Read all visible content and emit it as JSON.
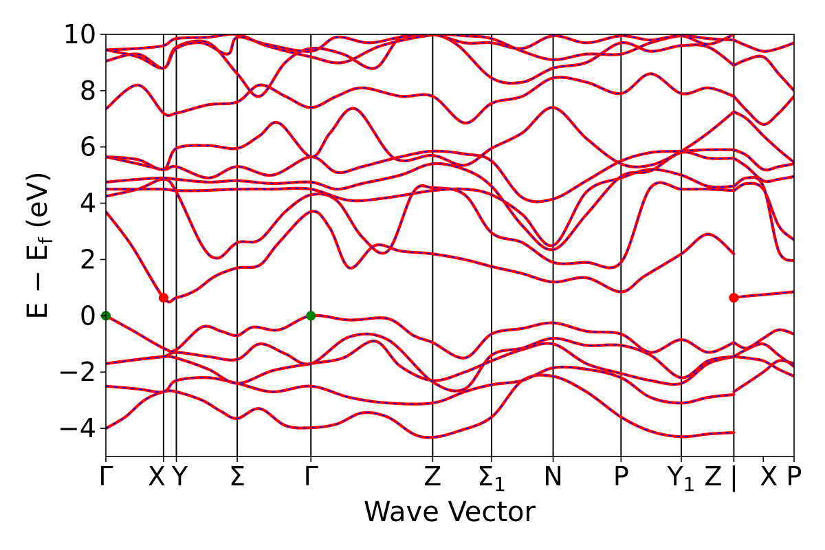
{
  "chart_data": {
    "type": "line",
    "title": "",
    "xlabel": "Wave Vector",
    "ylabel": "E − E_f (eV)",
    "ylabel_parts": {
      "main": "E − E",
      "sub": "f",
      "unit": " (eV)"
    },
    "ylim": [
      -5,
      10
    ],
    "yticks": [
      -4,
      -2,
      0,
      2,
      4,
      6,
      8,
      10
    ],
    "ytick_labels": [
      "−4",
      "−2",
      "0",
      "2",
      "4",
      "6",
      "8",
      "10"
    ],
    "xlim": [
      0,
      10.74
    ],
    "kpoints": [
      {
        "pos": 0.0,
        "label": "Γ"
      },
      {
        "pos": 0.9,
        "label": "X"
      },
      {
        "pos": 1.1,
        "label": "Y"
      },
      {
        "pos": 2.05,
        "label": "Σ"
      },
      {
        "pos": 3.2,
        "label": "Γ"
      },
      {
        "pos": 5.1,
        "label": "Z"
      },
      {
        "pos": 6.02,
        "label": "Σ",
        "sub": "1"
      },
      {
        "pos": 6.98,
        "label": "N"
      },
      {
        "pos": 8.04,
        "label": "P"
      },
      {
        "pos": 8.98,
        "label": "Y",
        "sub": "1"
      },
      {
        "pos": 9.8,
        "label": "Z"
      },
      {
        "pos": 9.8,
        "label": "|"
      },
      {
        "pos": 10.26,
        "label": "X"
      },
      {
        "pos": 10.74,
        "label": "P"
      }
    ],
    "vlines": [
      0.9,
      1.1,
      2.05,
      3.2,
      5.1,
      6.02,
      6.98,
      8.04,
      8.98,
      9.8
    ],
    "colors": {
      "band_main": "#ff0000",
      "band_overlay": "#0000ff",
      "cbm": "#ff0000",
      "vbm": "#008000"
    },
    "markers": [
      {
        "name": "CBM",
        "x": 0.9,
        "y": 0.64,
        "color": "#ff0000"
      },
      {
        "name": "CBM",
        "x": 9.8,
        "y": 0.64,
        "color": "#ff0000"
      },
      {
        "name": "VBM",
        "x": 0.0,
        "y": 0.0,
        "color": "#008000"
      },
      {
        "name": "VBM",
        "x": 3.2,
        "y": 0.0,
        "color": "#008000"
      }
    ],
    "series": [
      {
        "x": [
          0,
          0.3,
          0.6,
          0.9,
          1.1,
          1.5,
          1.8,
          2.05,
          2.4,
          2.8,
          3.2,
          3.6,
          4.0,
          4.4,
          4.8,
          5.1,
          5.5,
          6.02,
          6.5,
          6.98,
          7.5,
          8.04,
          8.5,
          8.98,
          9.4,
          9.8
        ],
        "y": [
          -4.0,
          -3.6,
          -3.0,
          -2.7,
          -2.7,
          -3.0,
          -3.4,
          -3.65,
          -3.3,
          -3.9,
          -3.98,
          -3.85,
          -3.45,
          -3.6,
          -4.2,
          -4.32,
          -4.1,
          -3.6,
          -2.3,
          -2.15,
          -2.7,
          -3.6,
          -4.1,
          -4.3,
          -4.2,
          -4.15
        ]
      },
      {
        "x": [
          0,
          0.5,
          0.9,
          1.1,
          1.6,
          2.05,
          2.6,
          3.2,
          3.8,
          4.4,
          5.1,
          5.6,
          6.02,
          6.5,
          6.98,
          7.5,
          8.04,
          8.5,
          8.98,
          9.4,
          9.8
        ],
        "y": [
          -2.5,
          -2.6,
          -2.7,
          -2.3,
          -2.2,
          -2.4,
          -2.7,
          -2.5,
          -2.9,
          -3.1,
          -3.1,
          -2.7,
          -2.45,
          -2.3,
          -1.85,
          -1.9,
          -2.2,
          -2.9,
          -3.1,
          -2.9,
          -2.8
        ]
      },
      {
        "x": [
          0,
          0.5,
          0.9,
          1.1,
          1.6,
          2.05,
          2.6,
          3.2,
          3.7,
          4.2,
          4.6,
          5.1,
          5.6,
          6.02,
          6.5,
          6.98,
          7.5,
          8.04,
          8.5,
          8.98,
          9.4,
          9.8
        ],
        "y": [
          -1.7,
          -1.55,
          -1.45,
          -1.5,
          -1.9,
          -2.4,
          -1.95,
          -1.7,
          -1.5,
          -0.9,
          -1.8,
          -2.3,
          -2.0,
          -1.6,
          -1.2,
          -1.0,
          -1.7,
          -2.05,
          -2.3,
          -2.4,
          -1.7,
          -1.45
        ]
      },
      {
        "x": [
          0,
          0.5,
          0.9,
          1.1,
          1.6,
          2.05,
          2.4,
          2.8,
          3.2,
          3.8,
          4.4,
          5.1,
          5.6,
          6.02,
          6.5,
          6.98,
          7.5,
          8.04,
          8.5,
          8.98,
          9.4,
          9.8
        ],
        "y": [
          -1.7,
          -1.55,
          -1.45,
          -1.3,
          -1.45,
          -1.55,
          -1.0,
          -1.35,
          -1.7,
          -0.75,
          -0.85,
          -2.35,
          -2.6,
          -1.4,
          -1.15,
          -0.8,
          -1.05,
          -1.05,
          -1.4,
          -2.2,
          -1.6,
          -1.45
        ]
      },
      {
        "x": [
          0,
          0.4,
          0.9,
          1.1,
          1.5,
          1.8,
          2.05,
          2.3,
          2.7,
          3.2,
          3.8,
          4.4,
          4.8,
          5.1,
          5.6,
          6.02,
          6.5,
          6.98,
          7.5,
          8.04,
          8.5,
          8.98,
          9.4,
          9.8
        ],
        "y": [
          0.0,
          -0.5,
          -1.15,
          -1.2,
          -0.4,
          -0.55,
          -0.7,
          -0.4,
          -0.5,
          0.0,
          -0.15,
          -0.1,
          -0.7,
          -0.95,
          -1.5,
          -0.65,
          -0.45,
          -0.25,
          -0.55,
          -0.65,
          -1.3,
          -0.85,
          -1.3,
          -0.95
        ]
      },
      {
        "x": [
          0,
          0.4,
          0.9,
          1.1,
          1.4,
          1.7,
          2.05,
          2.4,
          2.7,
          3.2,
          3.5,
          3.8,
          4.2,
          4.6,
          5.1,
          5.6,
          6.02,
          6.5,
          6.98,
          7.5,
          8.04,
          8.4,
          8.98,
          9.4,
          9.8
        ],
        "y": [
          3.7,
          2.5,
          0.64,
          0.64,
          0.9,
          1.4,
          1.7,
          1.8,
          2.6,
          3.7,
          3.1,
          1.7,
          2.5,
          2.3,
          2.2,
          2.0,
          1.75,
          1.5,
          1.2,
          1.35,
          0.85,
          1.4,
          2.2,
          2.9,
          2.2
        ]
      },
      {
        "x": [
          0,
          0.5,
          0.9,
          1.1,
          1.5,
          1.75,
          2.05,
          2.4,
          2.8,
          3.2,
          3.6,
          4.0,
          4.4,
          4.8,
          5.1,
          5.6,
          6.02,
          6.5,
          6.98,
          7.5,
          8.04,
          8.5,
          8.98,
          9.4,
          9.8
        ],
        "y": [
          4.25,
          4.5,
          4.85,
          4.4,
          2.5,
          2.05,
          2.6,
          2.7,
          3.7,
          4.3,
          4.1,
          2.8,
          2.3,
          4.4,
          4.55,
          4.3,
          2.95,
          2.6,
          1.9,
          1.9,
          1.9,
          4.55,
          4.5,
          4.5,
          4.45
        ]
      },
      {
        "x": [
          0,
          0.5,
          0.9,
          1.1,
          1.5,
          2.05,
          2.6,
          3.2,
          3.8,
          4.4,
          5.1,
          5.6,
          6.02,
          6.5,
          6.98,
          7.5,
          8.04,
          8.5,
          8.98,
          9.4,
          9.8
        ],
        "y": [
          4.5,
          4.5,
          4.5,
          4.45,
          4.45,
          4.5,
          4.5,
          4.5,
          4.1,
          4.2,
          4.45,
          4.5,
          4.3,
          3.6,
          2.5,
          4.4,
          4.9,
          5.2,
          5.0,
          4.6,
          4.6
        ]
      },
      {
        "x": [
          0,
          0.5,
          0.9,
          1.1,
          1.6,
          2.05,
          2.6,
          3.2,
          3.6,
          4.0,
          4.6,
          5.1,
          5.6,
          6.02,
          6.5,
          6.98,
          7.5,
          8.04,
          8.5,
          8.98,
          9.4,
          9.8
        ],
        "y": [
          4.75,
          4.85,
          4.9,
          4.85,
          4.75,
          4.8,
          4.7,
          4.75,
          4.5,
          4.7,
          5.0,
          5.4,
          5.2,
          4.6,
          3.2,
          2.35,
          3.6,
          4.95,
          5.15,
          5.8,
          5.6,
          5.6
        ]
      },
      {
        "x": [
          0,
          0.5,
          0.9,
          1.1,
          1.6,
          2.05,
          2.6,
          3.2,
          3.6,
          4.0,
          4.6,
          5.1,
          5.6,
          6.02,
          6.5,
          6.98,
          7.5,
          8.04,
          8.5,
          8.98,
          9.4,
          9.8
        ],
        "y": [
          5.65,
          5.4,
          5.2,
          5.3,
          4.9,
          5.3,
          5.0,
          5.65,
          5.1,
          5.3,
          5.65,
          5.85,
          5.75,
          5.5,
          4.2,
          4.15,
          4.8,
          5.5,
          5.8,
          5.85,
          5.9,
          5.9
        ]
      },
      {
        "x": [
          0,
          0.5,
          0.9,
          1.1,
          1.6,
          2.05,
          2.4,
          2.7,
          3.2,
          3.5,
          3.9,
          4.5,
          5.1,
          5.6,
          6.02,
          6.5,
          6.98,
          7.5,
          8.04,
          8.5,
          8.98,
          9.4,
          9.8
        ],
        "y": [
          5.65,
          5.55,
          5.2,
          5.95,
          6.05,
          5.95,
          6.4,
          6.85,
          5.65,
          6.5,
          7.35,
          5.6,
          5.7,
          5.35,
          5.95,
          6.5,
          7.4,
          6.3,
          5.4,
          5.35,
          5.85,
          6.5,
          7.25
        ]
      },
      {
        "x": [
          0,
          0.5,
          0.9,
          1.1,
          1.6,
          2.05,
          2.4,
          2.8,
          3.2,
          3.6,
          4.0,
          4.6,
          5.1,
          5.6,
          6.02,
          6.5,
          6.98,
          7.5,
          8.04,
          8.5,
          8.98,
          9.4,
          9.8
        ],
        "y": [
          7.35,
          8.2,
          7.2,
          7.2,
          7.5,
          7.6,
          8.2,
          7.8,
          7.4,
          7.8,
          8.1,
          7.8,
          7.8,
          6.85,
          7.55,
          7.8,
          8.45,
          8.3,
          7.9,
          8.6,
          7.9,
          8.1,
          7.8
        ]
      },
      {
        "x": [
          0,
          0.5,
          0.9,
          1.1,
          1.6,
          2.05,
          2.4,
          2.8,
          3.2,
          3.7,
          4.2,
          4.6,
          5.1,
          5.5,
          6.02,
          6.5,
          6.98,
          7.5,
          8.04,
          8.5,
          8.98,
          9.4,
          9.8
        ],
        "y": [
          9.05,
          9.3,
          8.8,
          9.55,
          9.7,
          8.6,
          7.8,
          9.0,
          9.5,
          9.3,
          8.8,
          9.9,
          10.0,
          9.6,
          8.45,
          8.3,
          8.8,
          9.0,
          9.7,
          9.4,
          9.6,
          9.55,
          8.9
        ]
      },
      {
        "x": [
          0,
          0.5,
          0.9,
          1.1,
          1.6,
          2.05,
          2.5,
          3.2,
          3.7,
          4.3,
          5.1,
          5.6,
          6.02,
          6.5,
          6.98,
          7.5,
          8.04,
          8.5,
          8.98,
          9.4,
          9.8
        ],
        "y": [
          9.45,
          9.5,
          9.6,
          9.85,
          9.9,
          10.0,
          9.6,
          9.2,
          9.0,
          9.6,
          9.98,
          9.95,
          9.85,
          9.4,
          9.1,
          9.3,
          9.3,
          9.7,
          9.95,
          9.85,
          9.8
        ]
      },
      {
        "x": [
          0,
          0.5,
          0.9,
          1.1,
          1.5,
          1.9,
          2.05,
          2.5,
          3.2,
          3.6,
          4.1,
          4.6,
          5.1,
          5.6,
          6.02,
          6.5,
          6.98,
          7.5,
          8.04,
          8.5,
          8.98,
          9.4,
          9.8
        ],
        "y": [
          9.45,
          9.2,
          8.8,
          9.5,
          9.7,
          9.3,
          9.9,
          9.65,
          9.4,
          9.9,
          9.7,
          9.9,
          10.0,
          9.7,
          9.7,
          9.5,
          9.95,
          9.7,
          9.95,
          9.8,
          9.95,
          9.65,
          10.0
        ]
      },
      {
        "x": [
          9.8,
          10.0,
          10.26,
          10.5,
          10.74
        ],
        "y": [
          0.64,
          0.7,
          0.75,
          0.8,
          0.85
        ]
      },
      {
        "x": [
          9.8,
          10.0,
          10.26,
          10.5,
          10.74
        ],
        "y": [
          -2.7,
          -2.4,
          -2.0,
          -1.6,
          -1.7
        ]
      },
      {
        "x": [
          9.8,
          10.0,
          10.26,
          10.5,
          10.74
        ],
        "y": [
          -1.45,
          -1.5,
          -1.6,
          -1.9,
          -2.15
        ]
      },
      {
        "x": [
          9.8,
          10.0,
          10.26,
          10.5,
          10.74
        ],
        "y": [
          -1.45,
          -1.2,
          -1.0,
          -1.4,
          -1.8
        ]
      },
      {
        "x": [
          9.8,
          10.0,
          10.26,
          10.5,
          10.74
        ],
        "y": [
          -0.95,
          -1.15,
          -0.8,
          -0.5,
          -0.65
        ]
      },
      {
        "x": [
          9.8,
          10.0,
          10.26,
          10.5,
          10.74
        ],
        "y": [
          4.45,
          4.7,
          4.5,
          3.2,
          2.7
        ]
      },
      {
        "x": [
          9.8,
          10.0,
          10.26,
          10.5,
          10.74
        ],
        "y": [
          4.6,
          4.9,
          4.6,
          2.3,
          1.95
        ]
      },
      {
        "x": [
          9.8,
          10.0,
          10.26,
          10.5,
          10.74
        ],
        "y": [
          5.6,
          5.3,
          4.8,
          4.85,
          4.95
        ]
      },
      {
        "x": [
          9.8,
          10.0,
          10.26,
          10.5,
          10.74
        ],
        "y": [
          5.9,
          5.7,
          5.2,
          5.3,
          5.4
        ]
      },
      {
        "x": [
          9.8,
          10.0,
          10.26,
          10.5,
          10.74
        ],
        "y": [
          7.25,
          7.0,
          6.4,
          5.9,
          5.45
        ]
      },
      {
        "x": [
          9.8,
          10.0,
          10.26,
          10.5,
          10.74
        ],
        "y": [
          7.8,
          7.3,
          6.8,
          7.2,
          7.8
        ]
      },
      {
        "x": [
          9.8,
          10.0,
          10.26,
          10.5,
          10.74
        ],
        "y": [
          8.9,
          9.1,
          9.2,
          8.6,
          8.0
        ]
      },
      {
        "x": [
          9.8,
          10.0,
          10.26,
          10.5,
          10.74
        ],
        "y": [
          9.8,
          9.6,
          9.4,
          9.5,
          9.7
        ]
      }
    ]
  }
}
